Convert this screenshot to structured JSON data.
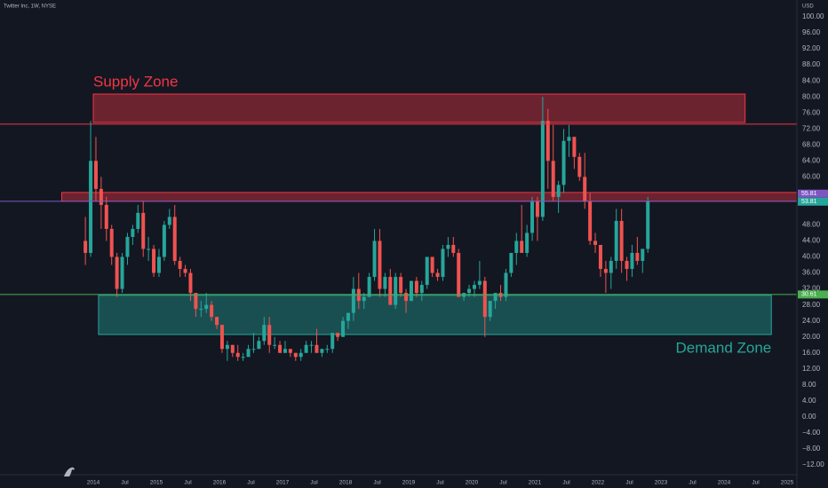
{
  "chart_data": {
    "type": "candlestick",
    "title": "Twitter Inc, 1W, NYSE",
    "currency": "USD",
    "up_color": "#26a69a",
    "down_color": "#ef5350",
    "grid": true,
    "ylim": [
      -12,
      100
    ],
    "yticks": [
      {
        "value": -12,
        "label": "−12.00"
      },
      {
        "value": -8,
        "label": "−8.00"
      },
      {
        "value": -4,
        "label": "−4.00"
      },
      {
        "value": 0,
        "label": "0.00"
      },
      {
        "value": 4,
        "label": "4.00"
      },
      {
        "value": 8,
        "label": "8.00"
      },
      {
        "value": 12,
        "label": "12.00"
      },
      {
        "value": 16,
        "label": "16.00"
      },
      {
        "value": 20,
        "label": "20.00"
      },
      {
        "value": 24,
        "label": "24.00"
      },
      {
        "value": 28,
        "label": "28.00"
      },
      {
        "value": 32,
        "label": "32.00"
      },
      {
        "value": 36,
        "label": "36.00"
      },
      {
        "value": 40,
        "label": "40.00"
      },
      {
        "value": 44,
        "label": "44.00"
      },
      {
        "value": 48,
        "label": "48.00"
      },
      {
        "value": 60,
        "label": "60.00"
      },
      {
        "value": 64,
        "label": "64.00"
      },
      {
        "value": 68,
        "label": "68.00"
      },
      {
        "value": 72,
        "label": "72.00"
      },
      {
        "value": 76,
        "label": "76.00"
      },
      {
        "value": 80,
        "label": "80.00"
      },
      {
        "value": 84,
        "label": "84.00"
      },
      {
        "value": 88,
        "label": "88.00"
      },
      {
        "value": 92,
        "label": "92.00"
      },
      {
        "value": 96,
        "label": "96.00"
      },
      {
        "value": 100,
        "label": "100.00"
      }
    ],
    "xticks": [
      {
        "value": "2014-01",
        "label": "2014"
      },
      {
        "value": "2014-07",
        "label": "Jul"
      },
      {
        "value": "2015-01",
        "label": "2015"
      },
      {
        "value": "2015-07",
        "label": "Jul"
      },
      {
        "value": "2016-01",
        "label": "2016"
      },
      {
        "value": "2016-07",
        "label": "Jul"
      },
      {
        "value": "2017-01",
        "label": "2017"
      },
      {
        "value": "2017-07",
        "label": "Jul"
      },
      {
        "value": "2018-01",
        "label": "2018"
      },
      {
        "value": "2018-07",
        "label": "Jul"
      },
      {
        "value": "2019-01",
        "label": "2019"
      },
      {
        "value": "2019-07",
        "label": "Jul"
      },
      {
        "value": "2020-01",
        "label": "2020"
      },
      {
        "value": "2020-07",
        "label": "Jul"
      },
      {
        "value": "2021-01",
        "label": "2021"
      },
      {
        "value": "2021-07",
        "label": "Jul"
      },
      {
        "value": "2022-01",
        "label": "2022"
      },
      {
        "value": "2022-07",
        "label": "Jul"
      },
      {
        "value": "2023-01",
        "label": "2023"
      },
      {
        "value": "2023-07",
        "label": "Jul"
      },
      {
        "value": "2024-01",
        "label": "2024"
      },
      {
        "value": "2024-07",
        "label": "Jul"
      },
      {
        "value": "2025-01",
        "label": "2025"
      }
    ],
    "x": [
      "2013-11",
      "2013-12",
      "2014-01",
      "2014-02",
      "2014-03",
      "2014-04",
      "2014-05",
      "2014-06",
      "2014-07",
      "2014-08",
      "2014-09",
      "2014-10",
      "2014-11",
      "2014-12",
      "2015-01",
      "2015-02",
      "2015-03",
      "2015-04",
      "2015-05",
      "2015-06",
      "2015-07",
      "2015-08",
      "2015-09",
      "2015-10",
      "2015-11",
      "2015-12",
      "2016-01",
      "2016-02",
      "2016-03",
      "2016-04",
      "2016-05",
      "2016-06",
      "2016-07",
      "2016-08",
      "2016-09",
      "2016-10",
      "2016-11",
      "2016-12",
      "2017-01",
      "2017-02",
      "2017-03",
      "2017-04",
      "2017-05",
      "2017-06",
      "2017-07",
      "2017-08",
      "2017-09",
      "2017-10",
      "2017-11",
      "2017-12",
      "2018-01",
      "2018-02",
      "2018-03",
      "2018-04",
      "2018-05",
      "2018-06",
      "2018-07",
      "2018-08",
      "2018-09",
      "2018-10",
      "2018-11",
      "2018-12",
      "2019-01",
      "2019-02",
      "2019-03",
      "2019-04",
      "2019-05",
      "2019-06",
      "2019-07",
      "2019-08",
      "2019-09",
      "2019-10",
      "2019-11",
      "2019-12",
      "2020-01",
      "2020-02",
      "2020-03",
      "2020-04",
      "2020-05",
      "2020-06",
      "2020-07",
      "2020-08",
      "2020-09",
      "2020-10",
      "2020-11",
      "2020-12",
      "2021-01",
      "2021-02",
      "2021-03",
      "2021-04",
      "2021-05",
      "2021-06",
      "2021-07",
      "2021-08",
      "2021-09",
      "2021-10",
      "2021-11",
      "2021-12",
      "2022-01",
      "2022-02",
      "2022-03",
      "2022-04",
      "2022-05",
      "2022-06",
      "2022-07",
      "2022-08",
      "2022-09",
      "2022-10"
    ],
    "open": [
      44,
      41,
      64,
      57,
      53,
      47,
      40,
      32,
      40,
      45,
      47,
      51,
      42,
      42,
      36,
      40,
      48,
      50,
      39,
      37,
      36,
      31,
      27,
      27,
      28,
      25,
      23,
      17,
      18,
      16,
      15,
      15,
      17,
      17,
      19,
      23,
      18,
      18,
      16,
      17,
      16,
      15,
      16,
      18,
      18,
      16,
      17,
      17,
      21,
      20,
      24,
      26,
      32,
      29,
      30,
      35,
      44,
      32,
      35,
      28,
      35,
      31,
      29,
      34,
      31,
      33,
      40,
      36,
      35,
      42,
      43,
      41,
      30,
      31,
      32,
      33,
      34,
      25,
      29,
      31,
      30,
      36,
      41,
      44,
      41,
      46,
      54,
      50,
      74,
      64,
      55,
      58,
      69,
      70,
      65,
      60,
      54,
      44,
      43,
      37,
      36,
      39,
      49,
      39,
      37,
      41,
      39,
      42
    ],
    "high": [
      50,
      74,
      70,
      60,
      55,
      48,
      41,
      41,
      46,
      48,
      53,
      54,
      45,
      43,
      42,
      49,
      52,
      53,
      40,
      38,
      37,
      31,
      29,
      31,
      29,
      25,
      23,
      19,
      18,
      18,
      16,
      18,
      21,
      20,
      25,
      25,
      20,
      19,
      19,
      17,
      16,
      17,
      19,
      19,
      22,
      17,
      18,
      21,
      21,
      25,
      26,
      35,
      36,
      31,
      36,
      47,
      47,
      36,
      37,
      36,
      36,
      32,
      34,
      35,
      34,
      40,
      40,
      37,
      43,
      45,
      45,
      42,
      31,
      33,
      34,
      39,
      35,
      29,
      31,
      33,
      37,
      41,
      46,
      53,
      48,
      55,
      55,
      80,
      77,
      73,
      59,
      72,
      73,
      70,
      66,
      66,
      56,
      46,
      43,
      39,
      40,
      52,
      52,
      40,
      43,
      45,
      42,
      55
    ],
    "low": [
      38,
      40,
      54,
      47,
      44,
      38,
      30,
      31,
      38,
      43,
      46,
      40,
      39,
      35,
      35,
      39,
      47,
      38,
      35,
      35,
      29,
      25,
      25,
      26,
      24,
      22,
      16,
      14,
      15,
      14,
      14,
      15,
      16,
      17,
      18,
      16,
      17,
      16,
      16,
      15,
      14,
      14,
      16,
      16,
      16,
      15,
      16,
      16,
      19,
      20,
      22,
      24,
      27,
      27,
      30,
      34,
      30,
      30,
      28,
      27,
      30,
      26,
      29,
      30,
      29,
      32,
      35,
      34,
      34,
      40,
      40,
      30,
      29,
      30,
      30,
      32,
      20,
      24,
      27,
      29,
      29,
      35,
      38,
      41,
      40,
      44,
      44,
      49,
      57,
      54,
      51,
      56,
      65,
      62,
      59,
      52,
      43,
      41,
      35,
      31,
      32,
      37,
      36,
      34,
      35,
      38,
      36,
      41
    ],
    "close": [
      41,
      64,
      57,
      53,
      47,
      40,
      32,
      40,
      45,
      47,
      51,
      42,
      42,
      36,
      40,
      48,
      50,
      39,
      37,
      36,
      31,
      27,
      27,
      28,
      25,
      23,
      17,
      18,
      16,
      15,
      15,
      17,
      17,
      19,
      23,
      18,
      18,
      16,
      17,
      16,
      15,
      16,
      18,
      18,
      16,
      17,
      17,
      21,
      20,
      24,
      26,
      32,
      29,
      30,
      35,
      44,
      32,
      35,
      28,
      35,
      31,
      29,
      34,
      31,
      33,
      40,
      36,
      35,
      42,
      43,
      41,
      30,
      31,
      32,
      33,
      34,
      25,
      29,
      31,
      30,
      36,
      41,
      44,
      41,
      46,
      54,
      50,
      74,
      64,
      55,
      58,
      69,
      70,
      65,
      60,
      54,
      44,
      43,
      37,
      36,
      39,
      49,
      39,
      37,
      41,
      39,
      42,
      54
    ],
    "zones": [
      {
        "label": "Supply Zone",
        "color": "#f23645",
        "x": [
          "2014-01",
          "2024-05"
        ],
        "y": [
          73.6,
          80.7
        ]
      },
      {
        "label": "Demand Zone",
        "color": "#26a69a",
        "x": [
          "2014-02",
          "2024-10"
        ],
        "y": [
          20.6,
          30.4
        ]
      },
      {
        "color": "#f23645",
        "x": [
          "2013-07",
          "2025-04"
        ],
        "y": [
          53.9,
          56.1
        ]
      }
    ],
    "levels": [
      {
        "value": 73.2,
        "color": "#f23645"
      },
      {
        "value": 53.9,
        "color": "#7e57c2"
      },
      {
        "value": 30.6,
        "color": "#4caf50"
      }
    ],
    "price_badges": [
      {
        "value": 55.81,
        "color": "#7e57c2"
      },
      {
        "value": 53.81,
        "color": "#26a69a"
      },
      {
        "value": 30.61,
        "color": "#4caf50"
      }
    ]
  }
}
